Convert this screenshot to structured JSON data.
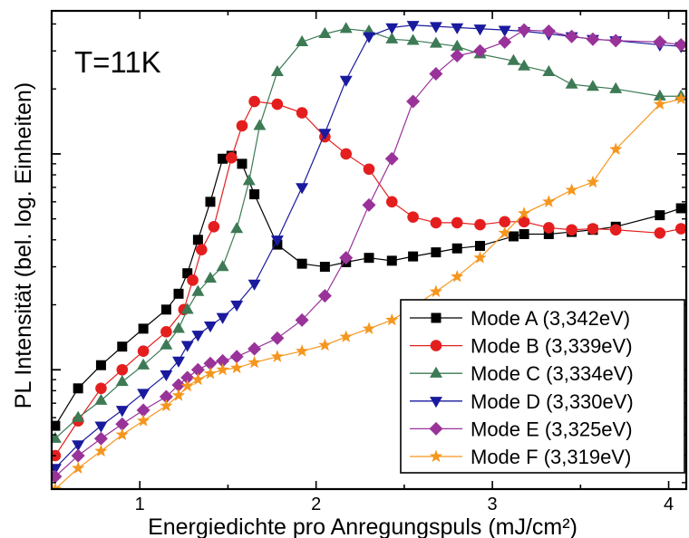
{
  "chart_data": {
    "type": "line",
    "xlabel": "Energiedichte pro Anregungspuls (mJ/cm²)",
    "ylabel": "PL Intensität (bel. log. Einheiten)",
    "xlim": [
      0.5,
      4.1
    ],
    "ylim": [
      0.28,
      46
    ],
    "y_scale": "log",
    "x_ticks": [
      1,
      2,
      3,
      4
    ],
    "y_major_ticks": [
      1,
      10
    ],
    "annotation": "T=11K",
    "legend_position": "bottom-right",
    "grid": false,
    "series": [
      {
        "name": "Mode A (3,342eV)",
        "marker": "square",
        "color": "#000000",
        "x": [
          0.52,
          0.65,
          0.78,
          0.9,
          1.02,
          1.15,
          1.22,
          1.27,
          1.33,
          1.4,
          1.47,
          1.52,
          1.58,
          1.65,
          1.78,
          1.92,
          2.05,
          2.17,
          2.3,
          2.43,
          2.55,
          2.68,
          2.8,
          2.93,
          3.12,
          3.18,
          3.32,
          3.45,
          3.57,
          3.7,
          3.95,
          4.07
        ],
        "y": [
          0.55,
          0.82,
          1.05,
          1.28,
          1.55,
          1.9,
          2.25,
          2.8,
          4.0,
          6.0,
          9.5,
          9.8,
          9.0,
          6.5,
          3.8,
          3.1,
          3.0,
          3.15,
          3.3,
          3.2,
          3.35,
          3.5,
          3.65,
          3.75,
          4.15,
          4.25,
          4.25,
          4.35,
          4.45,
          4.6,
          5.2,
          5.6
        ]
      },
      {
        "name": "Mode B (3,339eV)",
        "marker": "circle",
        "color": "#e41e1e",
        "x": [
          0.52,
          0.65,
          0.78,
          0.9,
          1.02,
          1.15,
          1.25,
          1.3,
          1.35,
          1.42,
          1.52,
          1.58,
          1.65,
          1.78,
          1.92,
          2.05,
          2.17,
          2.3,
          2.43,
          2.55,
          2.68,
          2.8,
          2.93,
          3.07,
          3.18,
          3.32,
          3.45,
          3.57,
          3.7,
          3.95,
          4.07
        ],
        "y": [
          0.4,
          0.58,
          0.82,
          1.0,
          1.22,
          1.5,
          1.9,
          2.6,
          3.6,
          4.6,
          9.6,
          13.5,
          17.5,
          17.0,
          15.5,
          12.0,
          10.0,
          8.5,
          6.0,
          5.1,
          4.8,
          4.8,
          4.7,
          4.85,
          4.85,
          4.55,
          4.45,
          4.5,
          4.45,
          4.3,
          4.5
        ]
      },
      {
        "name": "Mode C (3,334eV)",
        "marker": "triangle-up",
        "color": "#3d7a55",
        "x": [
          0.52,
          0.65,
          0.78,
          0.9,
          1.02,
          1.15,
          1.22,
          1.27,
          1.33,
          1.4,
          1.47,
          1.55,
          1.62,
          1.68,
          1.78,
          1.92,
          2.05,
          2.17,
          2.3,
          2.43,
          2.55,
          2.68,
          2.8,
          2.93,
          3.12,
          3.18,
          3.32,
          3.45,
          3.57,
          3.7,
          3.95,
          4.07
        ],
        "y": [
          0.48,
          0.6,
          0.72,
          0.88,
          1.05,
          1.3,
          1.55,
          1.9,
          2.3,
          2.65,
          3.0,
          4.5,
          7.5,
          13.5,
          24.0,
          33.0,
          36.0,
          38.0,
          37.0,
          34.0,
          33.5,
          32.5,
          31.5,
          29.0,
          27.0,
          25.5,
          24.0,
          21.0,
          20.5,
          20.0,
          18.5,
          18.5
        ]
      },
      {
        "name": "Mode D (3,330eV)",
        "marker": "triangle-down",
        "color": "#1a1a9e",
        "x": [
          0.52,
          0.65,
          0.78,
          0.9,
          1.02,
          1.15,
          1.22,
          1.27,
          1.33,
          1.4,
          1.47,
          1.55,
          1.65,
          1.78,
          1.92,
          2.05,
          2.17,
          2.3,
          2.43,
          2.55,
          2.68,
          2.8,
          2.93,
          3.07,
          3.18,
          3.32,
          3.45,
          3.57,
          3.7,
          3.95,
          4.07
        ],
        "y": [
          0.35,
          0.45,
          0.55,
          0.65,
          0.78,
          0.95,
          1.1,
          1.3,
          1.45,
          1.6,
          1.75,
          2.0,
          2.5,
          4.0,
          7.0,
          12.5,
          22.0,
          35.0,
          38.5,
          39.5,
          39.0,
          38.5,
          38.0,
          37.5,
          37.0,
          36.0,
          35.0,
          34.0,
          33.5,
          32.0,
          31.5
        ]
      },
      {
        "name": "Mode E (3,325eV)",
        "marker": "diamond",
        "color": "#993399",
        "x": [
          0.52,
          0.65,
          0.78,
          0.9,
          1.02,
          1.15,
          1.22,
          1.27,
          1.33,
          1.4,
          1.47,
          1.55,
          1.65,
          1.78,
          1.92,
          2.05,
          2.17,
          2.3,
          2.43,
          2.55,
          2.68,
          2.8,
          2.93,
          3.07,
          3.18,
          3.32,
          3.45,
          3.57,
          3.7,
          3.95,
          4.07
        ],
        "y": [
          0.32,
          0.4,
          0.48,
          0.56,
          0.65,
          0.75,
          0.85,
          0.92,
          1.0,
          1.07,
          1.1,
          1.15,
          1.25,
          1.4,
          1.7,
          2.2,
          3.3,
          5.8,
          9.5,
          17.5,
          23.5,
          28.5,
          30.0,
          33.0,
          37.5,
          37.0,
          35.0,
          34.0,
          33.5,
          33.0,
          32.0
        ]
      },
      {
        "name": "Mode F (3,319eV)",
        "marker": "star",
        "color": "#f5961e",
        "x": [
          0.52,
          0.65,
          0.78,
          0.9,
          1.02,
          1.15,
          1.22,
          1.27,
          1.33,
          1.4,
          1.47,
          1.55,
          1.65,
          1.78,
          1.92,
          2.05,
          2.17,
          2.3,
          2.43,
          2.55,
          2.68,
          2.8,
          2.93,
          3.07,
          3.18,
          3.32,
          3.45,
          3.57,
          3.7,
          3.95,
          4.07
        ],
        "y": [
          0.28,
          0.35,
          0.42,
          0.5,
          0.58,
          0.68,
          0.76,
          0.84,
          0.9,
          0.96,
          1.0,
          1.02,
          1.08,
          1.15,
          1.22,
          1.3,
          1.42,
          1.55,
          1.7,
          1.95,
          2.3,
          2.7,
          3.3,
          4.3,
          5.3,
          6.0,
          6.8,
          7.4,
          10.5,
          17.0,
          18.0
        ]
      }
    ]
  }
}
